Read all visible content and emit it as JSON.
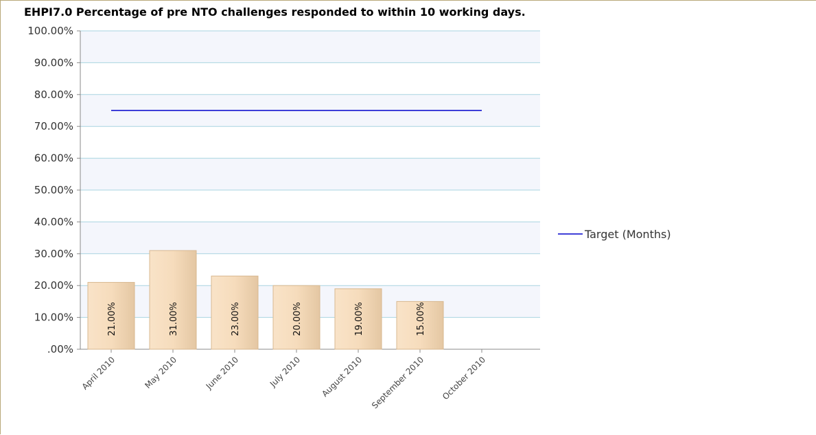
{
  "chart_data": {
    "type": "bar",
    "title": "EHPI7.0 Percentage of pre NTO challenges responded to within 10 working days.",
    "xlabel": "",
    "ylabel": "",
    "categories": [
      "April 2010",
      "May 2010",
      "June 2010",
      "July 2010",
      "August 2010",
      "September 2010",
      "October 2010"
    ],
    "series": [
      {
        "values": [
          21,
          31,
          23,
          20,
          19,
          15,
          null
        ],
        "labels": [
          "21.00%",
          "31.00%",
          "23.00%",
          "20.00%",
          "19.00%",
          "15.00%",
          ""
        ],
        "color": "#f2d2ab"
      },
      {
        "name": "Target (Months)",
        "type": "line",
        "values": [
          75,
          75,
          75,
          75,
          75,
          75,
          75
        ],
        "color": "#0000cc"
      }
    ],
    "ylim": [
      0,
      100
    ],
    "yticks": [
      0,
      10,
      20,
      30,
      40,
      50,
      60,
      70,
      80,
      90,
      100
    ],
    "ytick_labels": [
      ".00%",
      "10.00%",
      "20.00%",
      "30.00%",
      "40.00%",
      "50.00%",
      "60.00%",
      "70.00%",
      "80.00%",
      "90.00%",
      "100.00%"
    ],
    "grid": true,
    "legend_position": "right",
    "colors": {
      "gridline": "#a8d4e0",
      "band": "#f4f6fc"
    }
  }
}
